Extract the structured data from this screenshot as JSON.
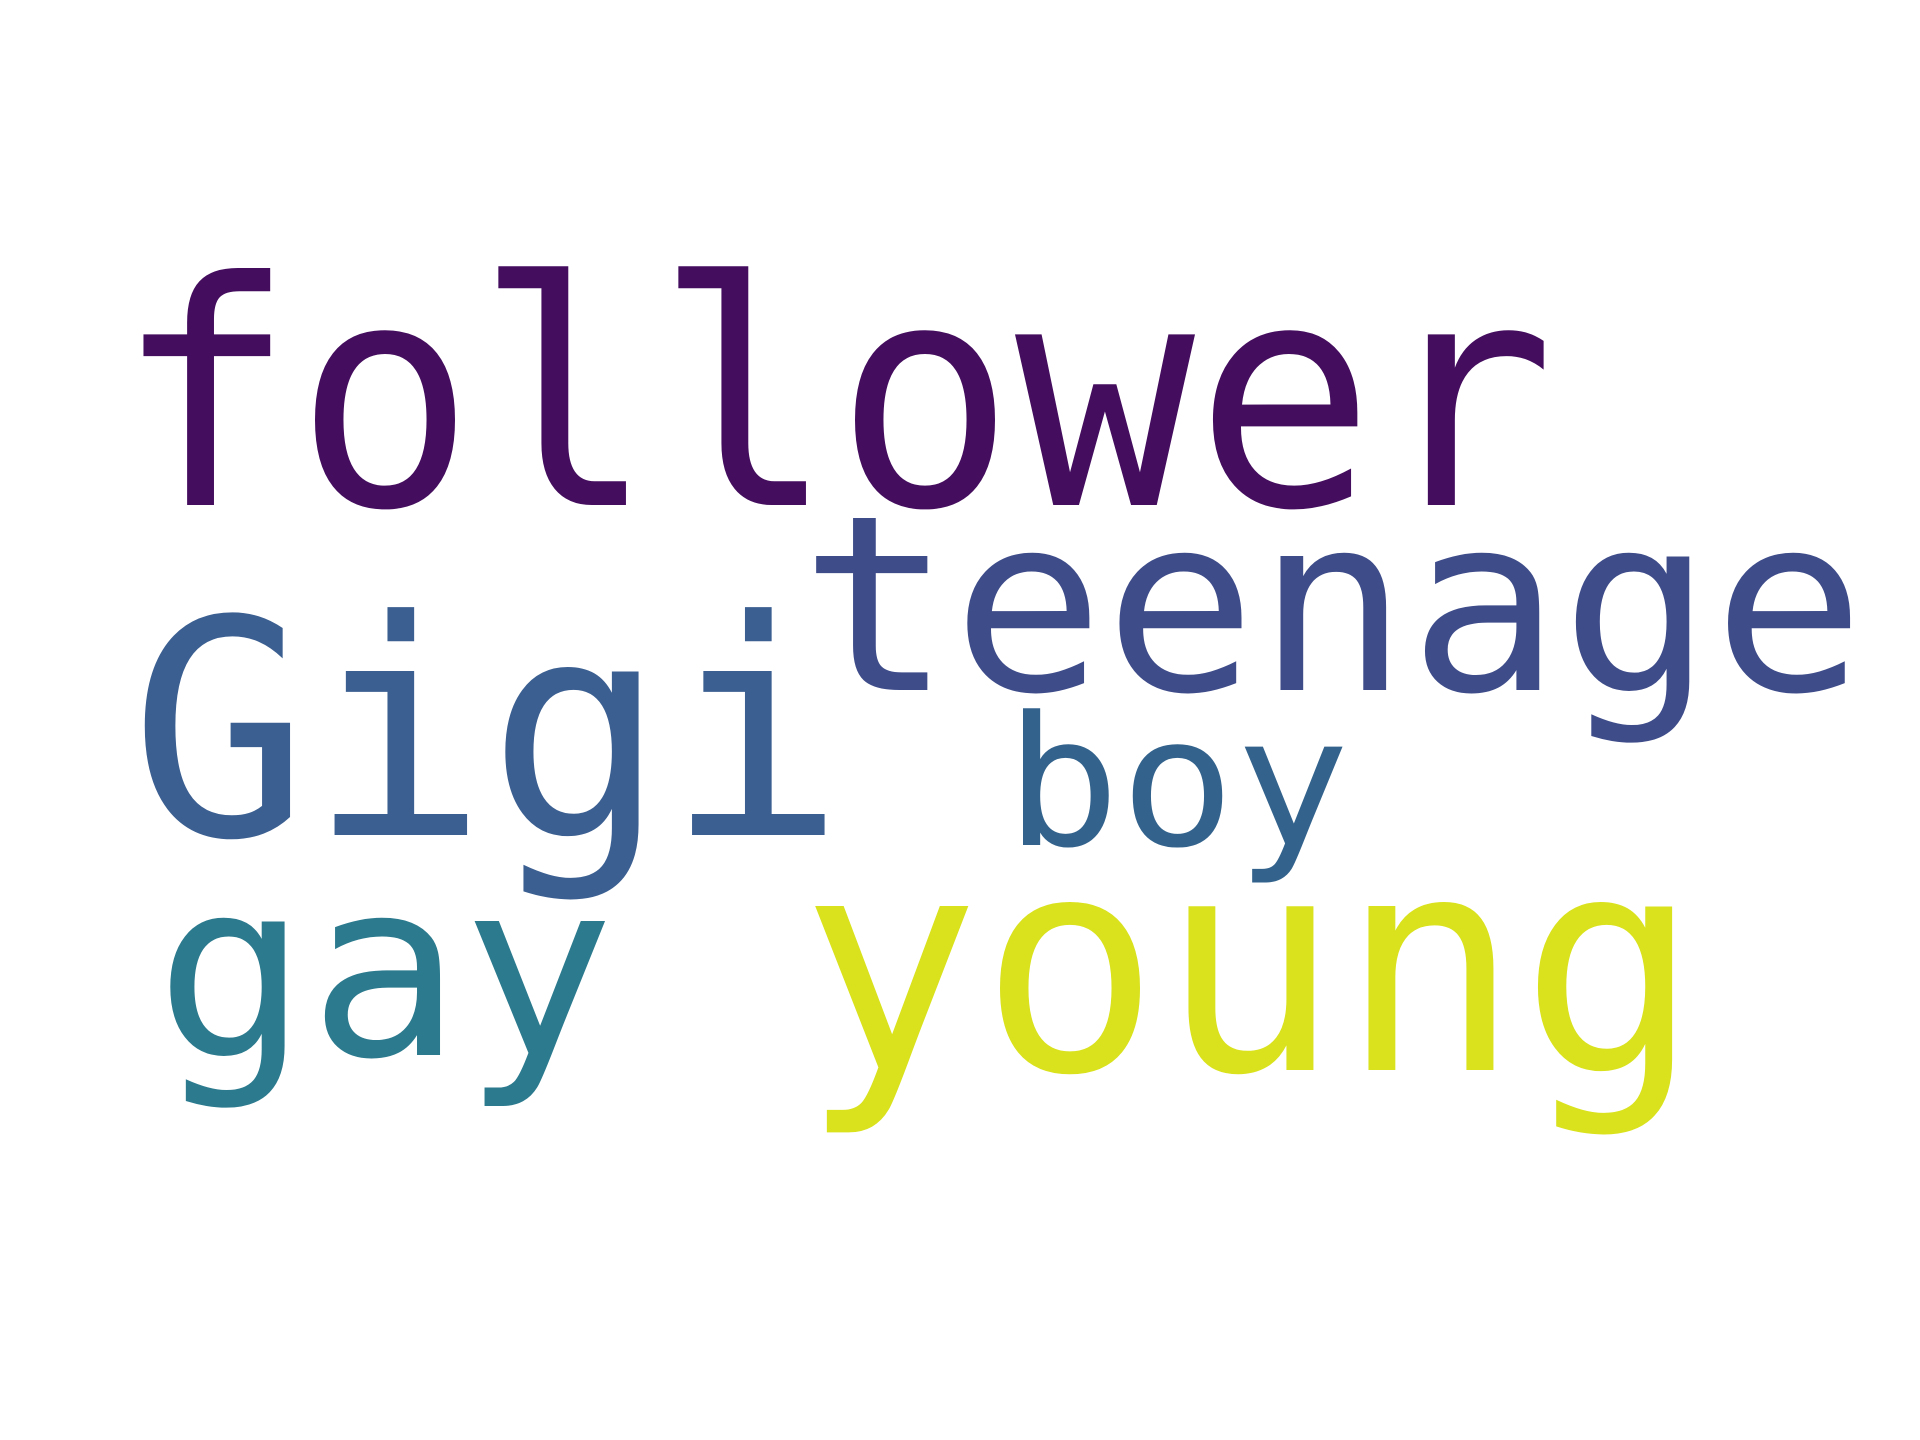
{
  "words": [
    {
      "text": "follower",
      "color": "#440d5e"
    },
    {
      "text": "teenage",
      "color": "#3e4c8a"
    },
    {
      "text": "Gigi",
      "color": "#3b5f91"
    },
    {
      "text": "boy",
      "color": "#33638d"
    },
    {
      "text": "gay",
      "color": "#2b7a8e"
    },
    {
      "text": "young",
      "color": "#d9e21c"
    }
  ]
}
